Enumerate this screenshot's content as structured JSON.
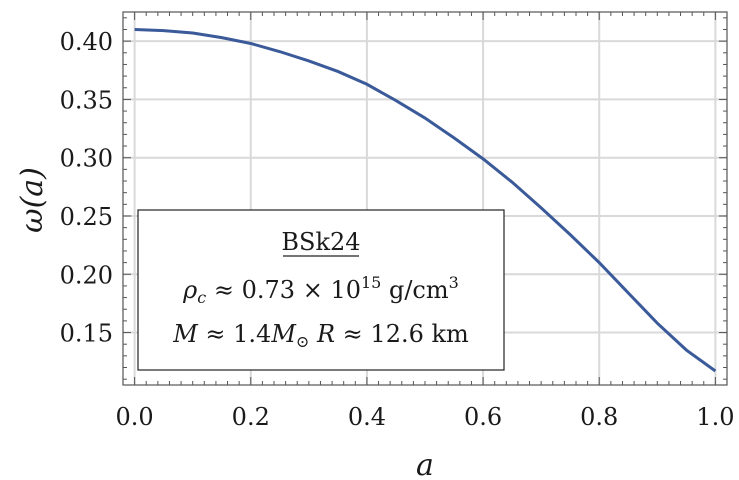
{
  "chart_data": {
    "type": "line",
    "xlabel": "a",
    "ylabel": "ω(a)",
    "xlim": [
      -0.02,
      1.02
    ],
    "ylim": [
      0.105,
      0.425
    ],
    "xticks": [
      "0.0",
      "0.2",
      "0.4",
      "0.6",
      "0.8",
      "1.0"
    ],
    "yticks": [
      "0.40",
      "0.35",
      "0.30",
      "0.25",
      "0.20",
      "0.15"
    ],
    "grid": true,
    "series": [
      {
        "color": "#3b5a9a",
        "x": [
          0.0,
          0.05,
          0.1,
          0.15,
          0.2,
          0.25,
          0.3,
          0.35,
          0.4,
          0.45,
          0.5,
          0.55,
          0.6,
          0.65,
          0.7,
          0.75,
          0.8,
          0.85,
          0.9,
          0.95,
          1.0
        ],
        "y": [
          0.41,
          0.409,
          0.407,
          0.403,
          0.398,
          0.391,
          0.383,
          0.374,
          0.363,
          0.349,
          0.334,
          0.317,
          0.299,
          0.279,
          0.257,
          0.234,
          0.21,
          0.184,
          0.158,
          0.135,
          0.117
        ]
      }
    ],
    "legend": {
      "title": "BSk24",
      "line2": {
        "rho_symbol": "ρ",
        "rho_sub": "c",
        "approx": "≈",
        "value": "0.73 × 10",
        "exp": "15",
        "unit": "g/cm",
        "unit_exp": "3"
      },
      "line3": {
        "m_symbol": "M",
        "approx1": "≈",
        "m_value": "1.4",
        "m_sub": "⊙",
        "r_symbol": "R",
        "approx2": "≈",
        "r_value": "12.6 km"
      },
      "placement": "bottom-left"
    }
  }
}
